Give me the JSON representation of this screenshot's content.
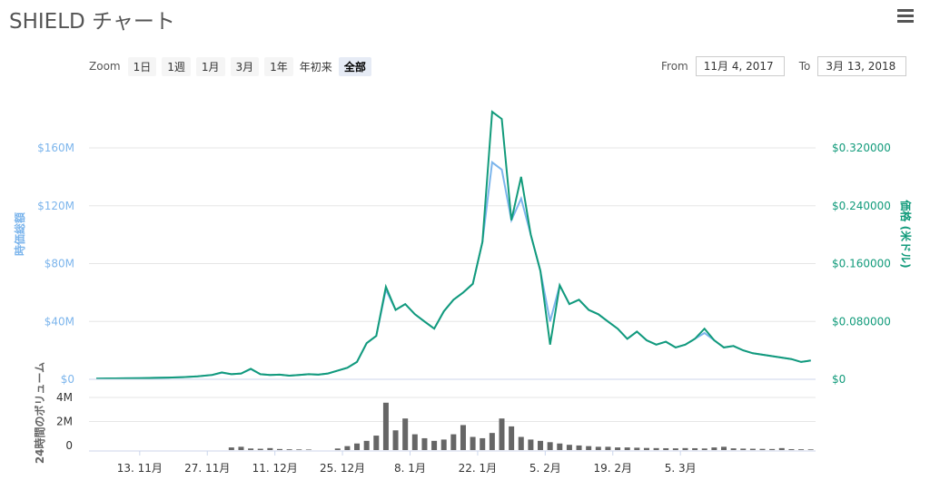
{
  "page": {
    "title": "SHIELD チャート",
    "menu_icon": "hamburger-menu-icon"
  },
  "range_selector": {
    "zoom_label": "Zoom",
    "buttons": [
      {
        "label": "1日",
        "active": false
      },
      {
        "label": "1週",
        "active": false
      },
      {
        "label": "1月",
        "active": false
      },
      {
        "label": "3月",
        "active": false
      },
      {
        "label": "1年",
        "active": false
      },
      {
        "label": "年初来",
        "active": false
      },
      {
        "label": "全部",
        "active": true
      }
    ],
    "from_label": "From",
    "from_value": "11月 4, 2017",
    "to_label": "To",
    "to_value": "3月 13, 2018"
  },
  "chart_data": {
    "type": "line",
    "x_axis": {
      "ticks": [
        "13. 11月",
        "27. 11月",
        "11. 12月",
        "25. 12月",
        "8. 1月",
        "22. 1月",
        "5. 2月",
        "19. 2月",
        "5. 3月"
      ]
    },
    "left_axis": {
      "label": "時価総額",
      "ticks": [
        "$0",
        "$40M",
        "$80M",
        "$120M",
        "$160M"
      ],
      "range": [
        0,
        160000000
      ],
      "color": "#7cb5ec"
    },
    "right_axis": {
      "label": "価格 (米ドル)",
      "ticks": [
        "$0",
        "$0.080000",
        "$0.160000",
        "$0.240000",
        "$0.320000"
      ],
      "range": [
        0,
        0.32
      ],
      "color": "#129b7b"
    },
    "volume_axis": {
      "label": "24時間のボリューム",
      "ticks": [
        "0",
        "2M",
        "4M"
      ],
      "range": [
        0,
        4000000
      ],
      "color": "#666666"
    },
    "series": [
      {
        "name": "時価総額",
        "color": "#7cb5ec",
        "y_axis": "left",
        "x_day": [
          0,
          3,
          6,
          9,
          12,
          15,
          18,
          21,
          24,
          26,
          28,
          30,
          32,
          34,
          36,
          38,
          40,
          42,
          44,
          46,
          48,
          50,
          52,
          54,
          56,
          58,
          60,
          62,
          64,
          66,
          68,
          70,
          72,
          74,
          76,
          78,
          80,
          82,
          84,
          86,
          88,
          90,
          92,
          94,
          96,
          98,
          100,
          102,
          104,
          106,
          108,
          110,
          112,
          114,
          116,
          118,
          120,
          122,
          124,
          126,
          128,
          130,
          132,
          134,
          136,
          138,
          140,
          142,
          144,
          146,
          148
        ],
        "values": [
          500000,
          600000,
          700000,
          800000,
          1000000,
          1200000,
          1500000,
          2000000,
          3000000,
          4500000,
          3500000,
          4000000,
          7000000,
          3500000,
          3000000,
          3200000,
          2500000,
          3000000,
          3500000,
          3200000,
          4000000,
          6000000,
          8000000,
          12000000,
          25000000,
          30000000,
          62000000,
          48000000,
          52000000,
          45000000,
          40000000,
          35000000,
          47000000,
          55000000,
          60000000,
          66000000,
          95000000,
          150000000,
          145000000,
          110000000,
          125000000,
          100000000,
          75000000,
          40000000,
          65000000,
          52000000,
          55000000,
          48000000,
          45000000,
          40000000,
          35000000,
          28000000,
          33000000,
          27000000,
          24000000,
          26000000,
          22000000,
          24000000,
          28000000,
          32000000,
          27000000,
          22000000,
          23000000,
          20000000,
          18000000,
          17000000,
          16000000,
          15000000,
          14000000,
          12000000,
          13000000
        ]
      },
      {
        "name": "価格 (米ドル)",
        "color": "#129b7b",
        "y_axis": "right",
        "x_day": [
          0,
          3,
          6,
          9,
          12,
          15,
          18,
          21,
          24,
          26,
          28,
          30,
          32,
          34,
          36,
          38,
          40,
          42,
          44,
          46,
          48,
          50,
          52,
          54,
          56,
          58,
          60,
          62,
          64,
          66,
          68,
          70,
          72,
          74,
          76,
          78,
          80,
          82,
          84,
          86,
          88,
          90,
          92,
          94,
          96,
          98,
          100,
          102,
          104,
          106,
          108,
          110,
          112,
          114,
          116,
          118,
          120,
          122,
          124,
          126,
          128,
          130,
          132,
          134,
          136,
          138,
          140,
          142,
          144,
          146,
          148
        ],
        "values": [
          0.001,
          0.0012,
          0.0014,
          0.0016,
          0.002,
          0.0024,
          0.003,
          0.004,
          0.006,
          0.0095,
          0.007,
          0.008,
          0.0145,
          0.007,
          0.006,
          0.0064,
          0.005,
          0.006,
          0.007,
          0.0064,
          0.008,
          0.012,
          0.016,
          0.024,
          0.05,
          0.06,
          0.128,
          0.096,
          0.104,
          0.09,
          0.08,
          0.07,
          0.094,
          0.11,
          0.12,
          0.132,
          0.19,
          0.37,
          0.36,
          0.22,
          0.28,
          0.2,
          0.15,
          0.048,
          0.13,
          0.104,
          0.11,
          0.096,
          0.09,
          0.08,
          0.07,
          0.056,
          0.066,
          0.054,
          0.048,
          0.052,
          0.044,
          0.048,
          0.056,
          0.07,
          0.054,
          0.044,
          0.046,
          0.04,
          0.036,
          0.034,
          0.032,
          0.03,
          0.028,
          0.024,
          0.026
        ]
      },
      {
        "name": "24時間のボリューム",
        "type": "column",
        "color": "#666666",
        "y_axis": "volume",
        "x_day": [
          28,
          30,
          32,
          34,
          36,
          38,
          40,
          42,
          44,
          50,
          52,
          54,
          56,
          58,
          60,
          62,
          64,
          66,
          68,
          70,
          72,
          74,
          76,
          78,
          80,
          82,
          84,
          86,
          88,
          90,
          92,
          94,
          96,
          98,
          100,
          102,
          104,
          106,
          108,
          110,
          112,
          114,
          116,
          118,
          120,
          122,
          124,
          126,
          128,
          130,
          132,
          134,
          136,
          138,
          140,
          142,
          144,
          146,
          148
        ],
        "values": [
          200000,
          250000,
          120000,
          100000,
          150000,
          80000,
          60000,
          50000,
          40000,
          120000,
          300000,
          500000,
          700000,
          1100000,
          3600000,
          1500000,
          2400000,
          1200000,
          900000,
          700000,
          800000,
          1200000,
          1900000,
          1000000,
          900000,
          1300000,
          2400000,
          1800000,
          1000000,
          800000,
          700000,
          600000,
          500000,
          400000,
          350000,
          300000,
          250000,
          250000,
          200000,
          200000,
          180000,
          160000,
          150000,
          140000,
          130000,
          150000,
          140000,
          120000,
          200000,
          250000,
          130000,
          110000,
          100000,
          90000,
          80000,
          150000,
          70000,
          60000,
          50000
        ]
      }
    ]
  }
}
